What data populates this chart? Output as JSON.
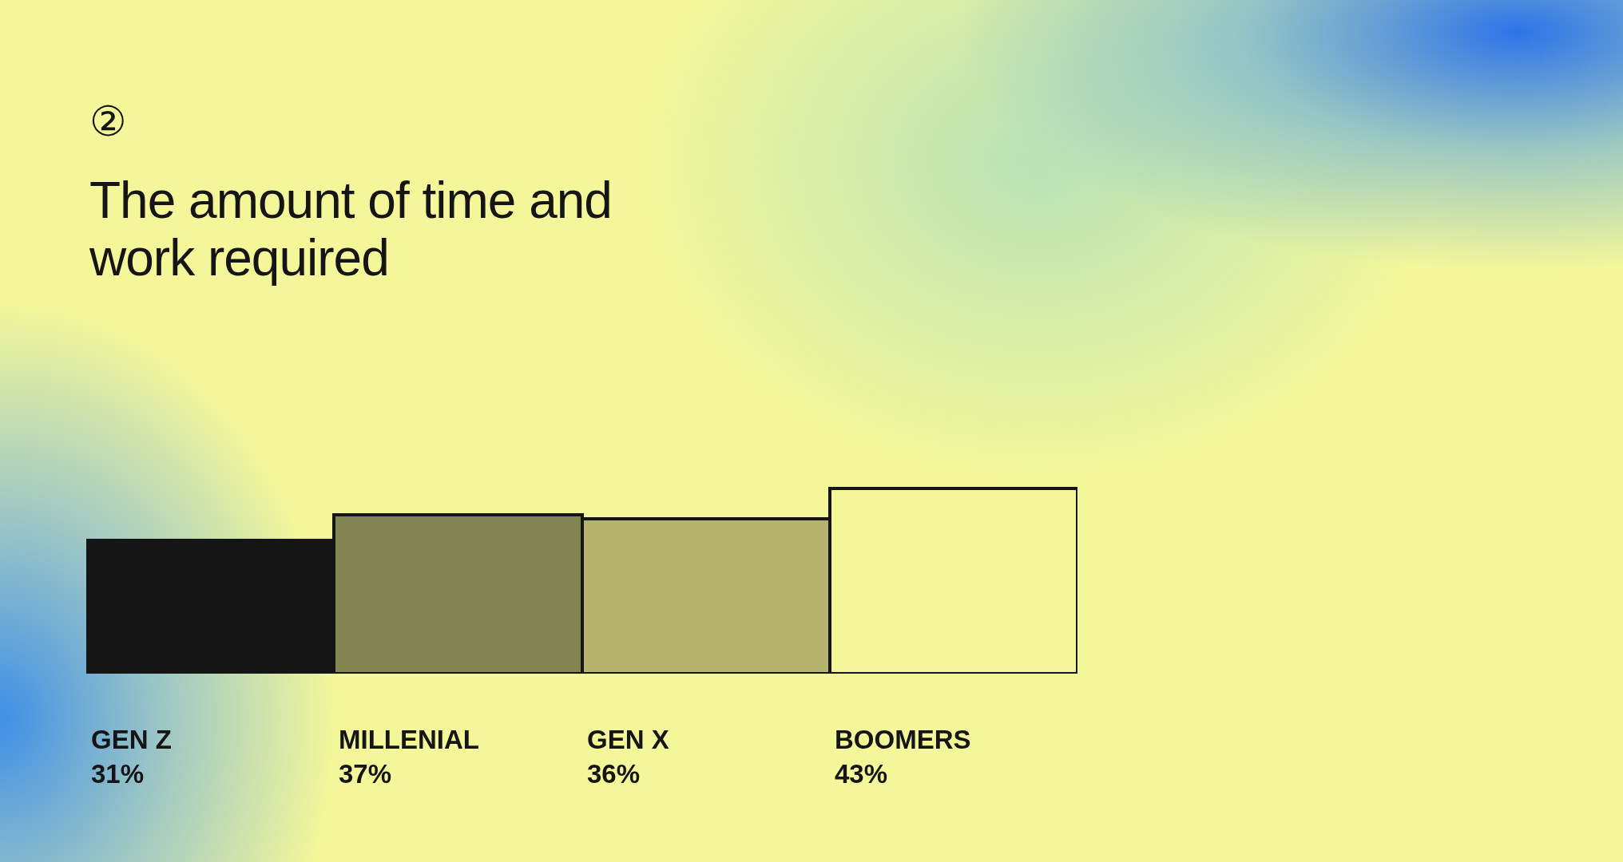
{
  "chart_data": {
    "type": "bar",
    "subtitle": "②",
    "title": "The amount of time and work required",
    "categories": [
      "GEN Z",
      "MILLENIAL",
      "GEN X",
      "BOOMERS"
    ],
    "values": [
      31,
      37,
      36,
      43
    ],
    "value_labels": [
      "31%",
      "37%",
      "36%",
      "43%"
    ],
    "colors": [
      "#151515",
      "#838552",
      "#b4b46f",
      "#f3f79a"
    ],
    "grid": false,
    "legend": false
  }
}
